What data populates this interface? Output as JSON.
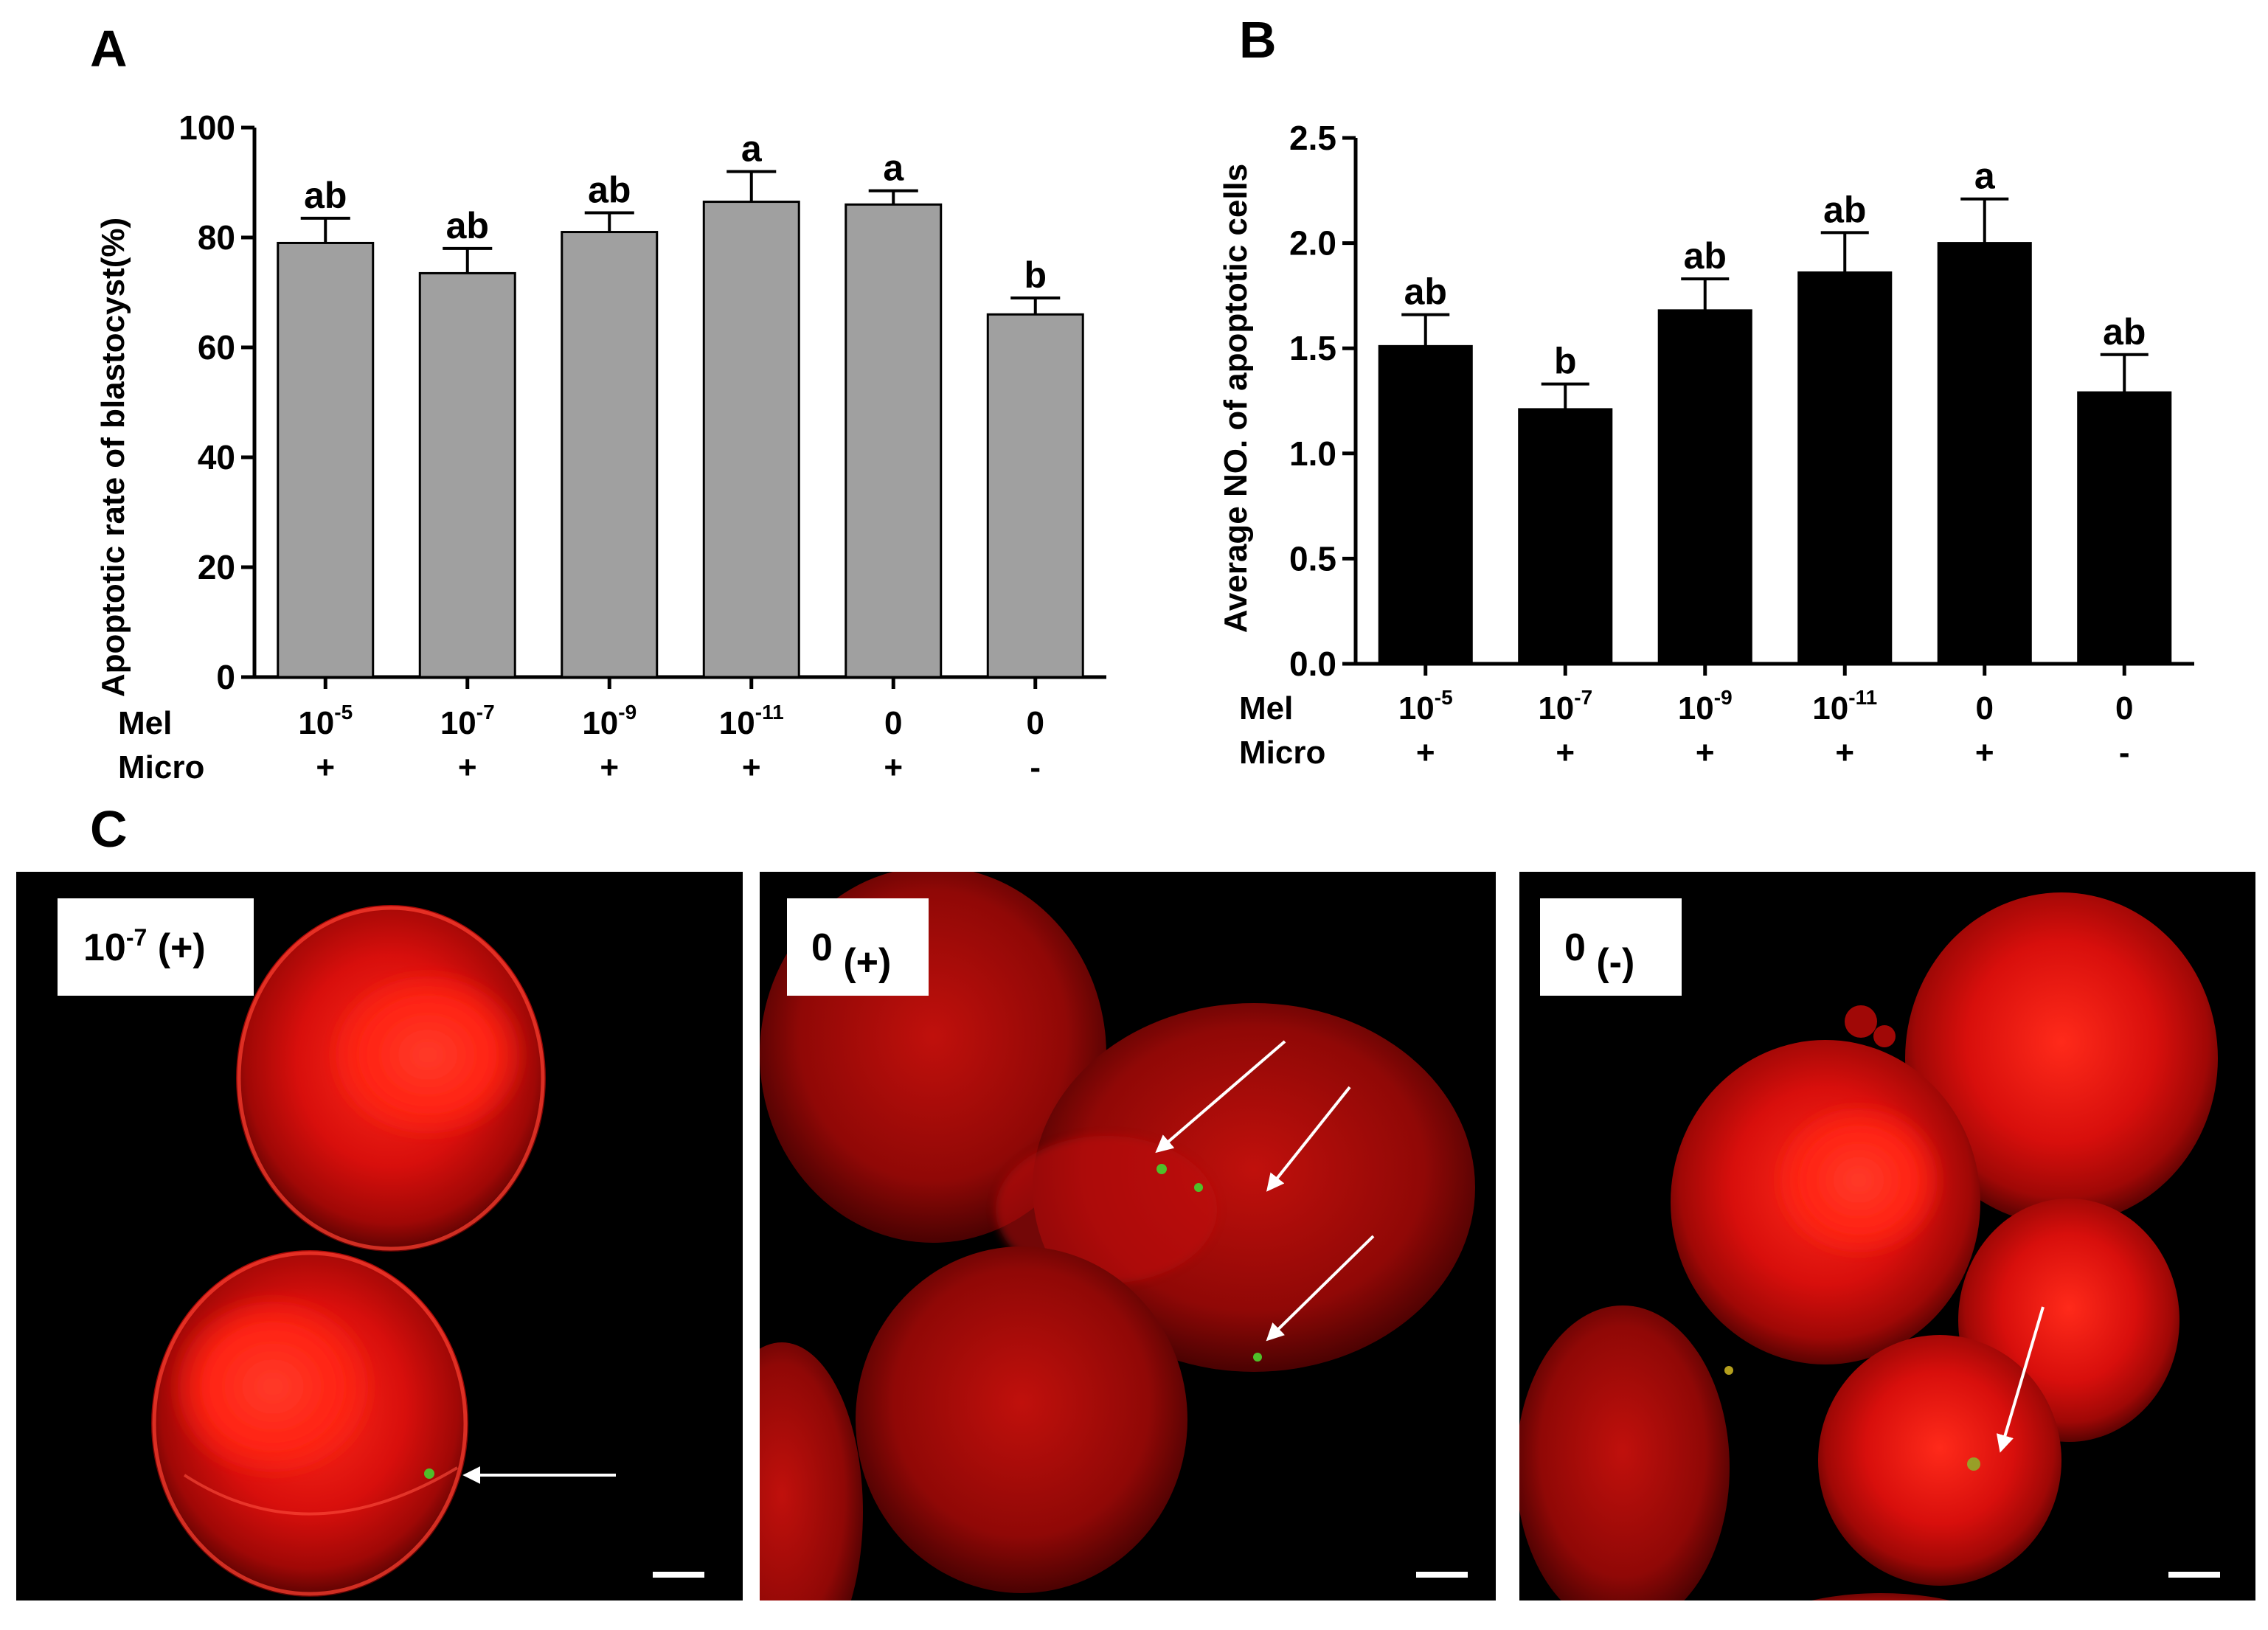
{
  "panel_labels": {
    "a": "A",
    "b": "B",
    "c": "C"
  },
  "row_labels": {
    "mel": "Mel",
    "micro": "Micro"
  },
  "conditions": [
    {
      "mel_base": "10",
      "mel_exp": "-5",
      "micro": "+"
    },
    {
      "mel_base": "10",
      "mel_exp": "-7",
      "micro": "+"
    },
    {
      "mel_base": "10",
      "mel_exp": "-9",
      "micro": "+"
    },
    {
      "mel_base": "10",
      "mel_exp": "-11",
      "micro": "+"
    },
    {
      "mel_base": "0",
      "mel_exp": "",
      "micro": "+"
    },
    {
      "mel_base": "0",
      "mel_exp": "",
      "micro": "-"
    }
  ],
  "chart_data": [
    {
      "type": "bar",
      "panel": "A",
      "ylabel": "Apoptotic rate of blastocyst(%)",
      "ylim": [
        0,
        100
      ],
      "yticks": [
        0,
        20,
        40,
        60,
        80,
        100
      ],
      "bar_color": "#a0a0a0",
      "values": [
        79,
        73.5,
        81,
        86.5,
        86,
        66
      ],
      "errors": [
        4.5,
        4.5,
        3.5,
        5.5,
        2.5,
        3
      ],
      "significance": [
        "ab",
        "ab",
        "ab",
        "a",
        "a",
        "b"
      ]
    },
    {
      "type": "bar",
      "panel": "B",
      "ylabel": "Average NO. of apoptotic cells",
      "ylim": [
        0,
        2.5
      ],
      "yticks": [
        "0.0",
        "0.5",
        "1.0",
        "1.5",
        "2.0",
        "2.5"
      ],
      "bar_color": "#000000",
      "values": [
        1.51,
        1.21,
        1.68,
        1.86,
        2.0,
        1.29
      ],
      "errors": [
        0.15,
        0.12,
        0.15,
        0.19,
        0.21,
        0.18
      ],
      "significance": [
        "ab",
        "b",
        "ab",
        "ab",
        "a",
        "ab"
      ]
    }
  ],
  "images": [
    {
      "label_base": "10",
      "label_exp": "-7",
      "label_suffix": " (+)"
    },
    {
      "label_base": "0",
      "label_exp": "",
      "label_suffix": " (+)"
    },
    {
      "label_base": "0",
      "label_exp": "",
      "label_suffix": " (-)"
    }
  ],
  "colors": {
    "fluorescence_red": "#ff1a1a",
    "apoptotic_green": "#4fbf2a",
    "background": "#000000"
  }
}
